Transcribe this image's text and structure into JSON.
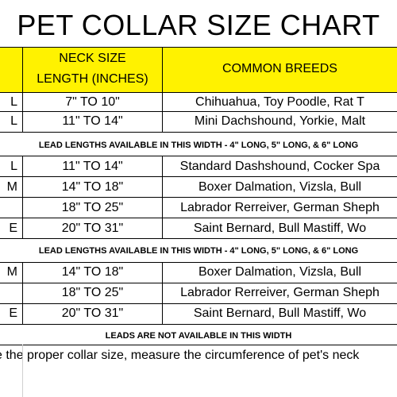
{
  "title": "PET COLLAR SIZE CHART",
  "header": {
    "neck_line1": "NECK SIZE",
    "neck_line2": "LENGTH (INCHES)",
    "breeds": "COMMON BREEDS"
  },
  "colors": {
    "header_band": "#fff200"
  },
  "group1": [
    {
      "size": "L",
      "neck": "7\" TO 10\"",
      "breeds": "Chihuahua, Toy Poodle, Rat T"
    },
    {
      "size": "L",
      "neck": "11\" TO 14\"",
      "breeds": "Mini Dachshound, Yorkie, Malt"
    }
  ],
  "band1": "LEAD LENGTHS AVAILABLE IN THIS WIDTH - 4\" LONG, 5\" LONG, & 6\" LONG",
  "group2": [
    {
      "size": "L",
      "neck": "11\" TO 14\"",
      "breeds": "Standard Dashshound, Cocker Spa"
    },
    {
      "size": "M",
      "neck": "14\" TO 18\"",
      "breeds": "Boxer Dalmation, Vizsla, Bull"
    },
    {
      "size": "",
      "neck": "18\" TO 25\"",
      "breeds": "Labrador Rerreiver, German Sheph"
    },
    {
      "size": "E",
      "neck": "20\" TO 31\"",
      "breeds": "Saint Bernard, Bull Mastiff, Wo"
    }
  ],
  "band2": "LEAD LENGTHS AVAILABLE IN THIS WIDTH  - 4\" LONG, 5\" LONG, & 6\" LONG",
  "group3": [
    {
      "size": "M",
      "neck": "14\" TO 18\"",
      "breeds": "Boxer Dalmation, Vizsla, Bull"
    },
    {
      "size": "",
      "neck": "18\" TO 25\"",
      "breeds": "Labrador Rerreiver, German Sheph"
    },
    {
      "size": "E",
      "neck": "20\" TO 31\"",
      "breeds": "Saint Bernard, Bull Mastiff, Wo"
    }
  ],
  "band3": "LEADS ARE NOT AVAILABLE IN THIS WIDTH",
  "note": "e the proper collar size, measure the circumference of pet's neck"
}
